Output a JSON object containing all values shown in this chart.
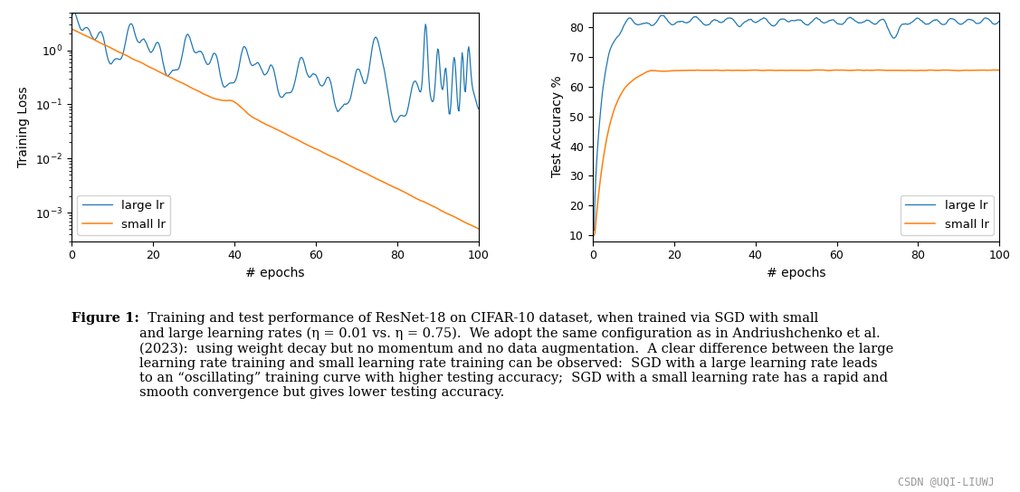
{
  "fig_width": 11.27,
  "fig_height": 5.44,
  "dpi": 100,
  "color_large_lr": "#1f77b4",
  "color_small_lr": "#ff7f0e",
  "xlabel": "# epochs",
  "ylabel_left": "Training Loss",
  "ylabel_right": "Test Accuracy %",
  "legend_labels": [
    "large lr",
    "small lr"
  ],
  "xlim": [
    0,
    100
  ],
  "ylim_loss": [
    0.0003,
    5.0
  ],
  "ylim_acc": [
    8,
    85
  ],
  "yticks_acc": [
    10,
    20,
    30,
    40,
    50,
    60,
    70,
    80
  ],
  "caption_bold": "Figure 1:",
  "caption_text": "  Training and test performance of ResNet-18 on CIFAR-10 dataset, when trained via SGD with small\nand large learning rates (η = 0.01 vs. η = 0.75).  We adopt the same configuration as in Andriushchenko et al.\n(2023):  using weight decay but no momentum and no data augmentation.  A clear difference between the large\nlearning rate training and small learning rate training can be observed:  SGD with a large learning rate leads\nto an “oscillating” training curve with higher testing accuracy;  SGD with a small learning rate has a rapid and\nsmooth convergence but gives lower testing accuracy.",
  "watermark": "CSDN @UQI-LIUWJ",
  "caption_fontsize": 10.5,
  "watermark_fontsize": 8.5,
  "bg_color": "#ffffff"
}
